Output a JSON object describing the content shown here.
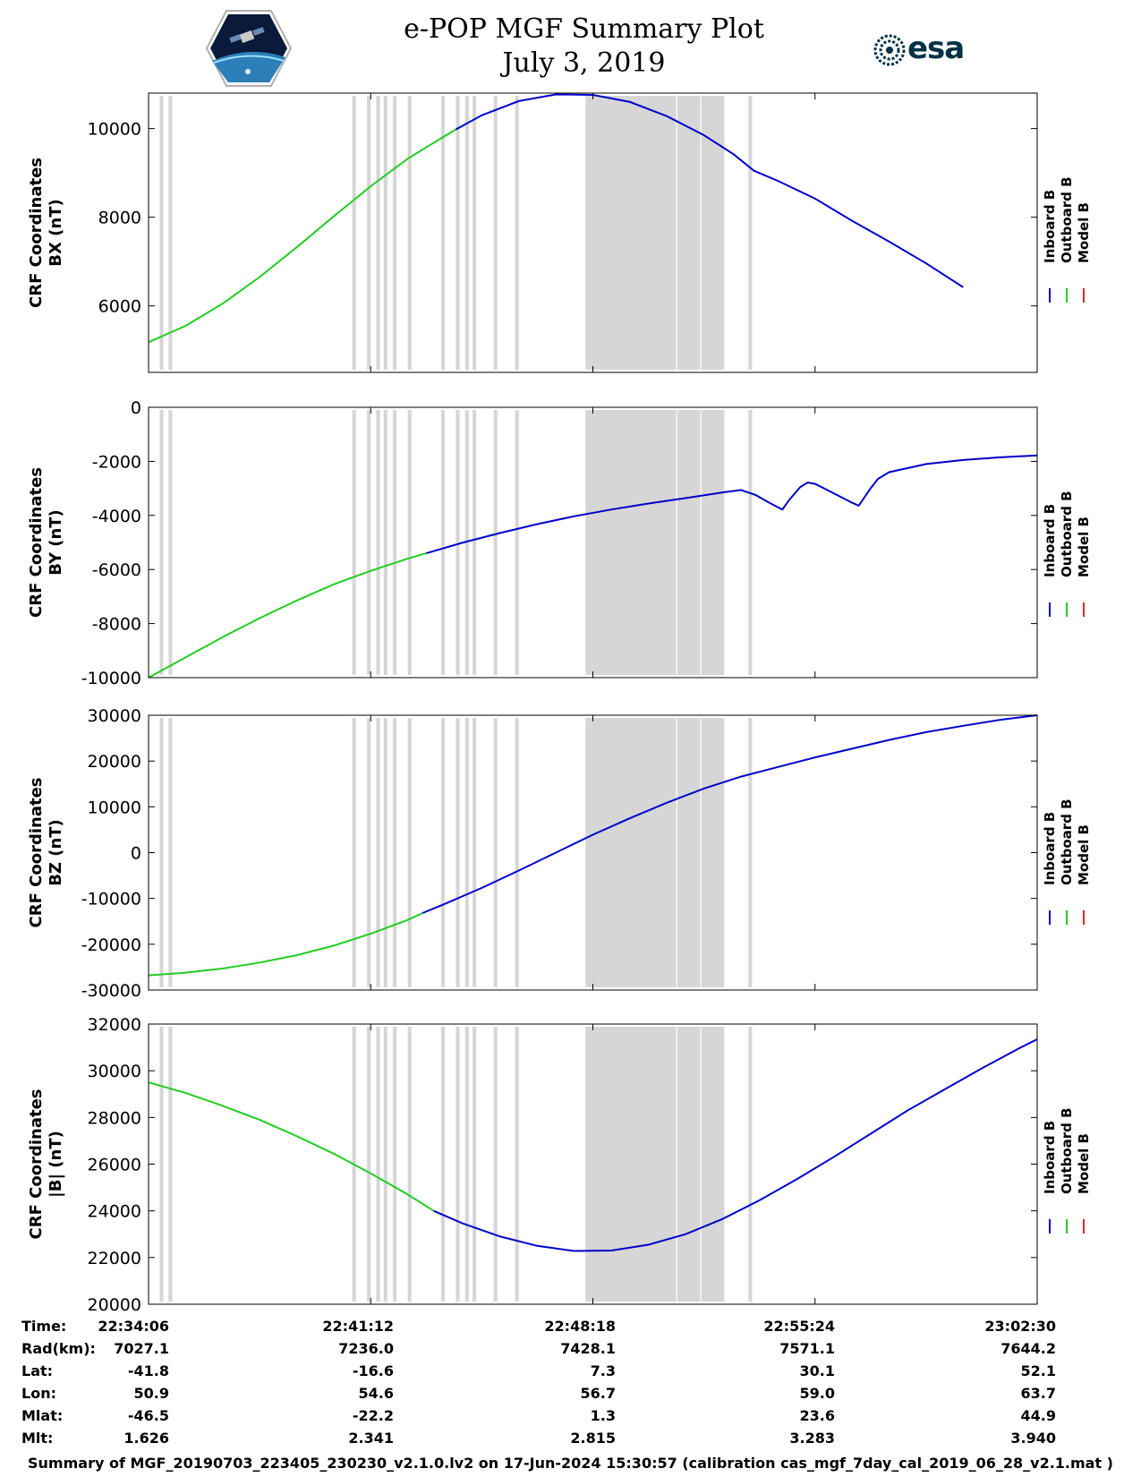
{
  "title": "e-POP MGF Summary Plot",
  "date": "July 3, 2019",
  "logo_right_text": "esa",
  "footer": "Summary of MGF_20190703_223405_230230_v2.1.0.lv2 on 17-Jun-2024 15:30:57 (calibration cas_mgf_7day_cal_2019_06_28_v2.1.mat )",
  "colors": {
    "inboard": "#0000cc",
    "outboard": "#22cc22",
    "model": "#ee2222",
    "gap": "#d6d6d6"
  },
  "legend": [
    "Inboard B",
    "Outboard B",
    "Model B"
  ],
  "time_axis": {
    "tick_labels": [
      "22:34:06",
      "22:41:12",
      "22:48:18",
      "22:55:24",
      "23:02:30"
    ],
    "start_sec": 0,
    "end_sec": 1704
  },
  "orbit_table": {
    "rows": [
      {
        "label": "Time:",
        "values": [
          "22:34:06",
          "22:41:12",
          "22:48:18",
          "22:55:24",
          "23:02:30"
        ]
      },
      {
        "label": "Rad(km):",
        "values": [
          "7027.1",
          "7236.0",
          "7428.1",
          "7571.1",
          "7644.2"
        ]
      },
      {
        "label": "Lat:",
        "values": [
          "-41.8",
          "-16.6",
          "7.3",
          "30.1",
          "52.1"
        ]
      },
      {
        "label": "Lon:",
        "values": [
          "50.9",
          "54.6",
          "56.7",
          "59.0",
          "63.7"
        ]
      },
      {
        "label": "Mlat:",
        "values": [
          "-46.5",
          "-22.2",
          "1.3",
          "23.6",
          "44.9"
        ]
      },
      {
        "label": "Mlt:",
        "values": [
          "1.626",
          "2.341",
          "2.815",
          "3.283",
          "3.940"
        ]
      }
    ]
  },
  "chart_data": [
    {
      "type": "line",
      "ylabel": [
        "CRF Coordinates",
        "BX (nT)"
      ],
      "ylim": [
        4500,
        10800
      ],
      "yticks": [
        6000,
        8000,
        10000
      ],
      "gaps": [
        [
          30,
          40
        ],
        [
          54,
          64
        ],
        [
          550,
          560
        ],
        [
          590,
          600
        ],
        [
          615,
          625
        ],
        [
          635,
          645
        ],
        [
          660,
          670
        ],
        [
          700,
          710
        ],
        [
          790,
          800
        ],
        [
          830,
          840
        ],
        [
          855,
          865
        ],
        [
          875,
          885
        ],
        [
          932,
          942
        ],
        [
          990,
          1000
        ],
        [
          1180,
          1425
        ],
        [
          1428,
          1490
        ],
        [
          1493,
          1555
        ],
        [
          1620,
          1630
        ]
      ],
      "series": [
        {
          "name": "Outboard B",
          "color_key": "outboard",
          "points": [
            [
              0,
              5180
            ],
            [
              100,
              5550
            ],
            [
              200,
              6050
            ],
            [
              300,
              6650
            ],
            [
              400,
              7320
            ],
            [
              500,
              8020
            ],
            [
              600,
              8700
            ],
            [
              700,
              9320
            ],
            [
              800,
              9830
            ],
            [
              830,
              9980
            ]
          ]
        },
        {
          "name": "Inboard B",
          "color_key": "inboard",
          "points": [
            [
              830,
              9980
            ],
            [
              900,
              10300
            ],
            [
              1000,
              10620
            ],
            [
              1100,
              10770
            ],
            [
              1200,
              10760
            ],
            [
              1300,
              10600
            ],
            [
              1400,
              10280
            ],
            [
              1500,
              9850
            ],
            [
              1580,
              9420
            ],
            [
              1635,
              9050
            ],
            [
              1700,
              8820
            ],
            [
              1800,
              8420
            ],
            [
              1900,
              7920
            ],
            [
              2000,
              7450
            ],
            [
              2100,
              6960
            ],
            [
              2200,
              6420
            ]
          ]
        }
      ]
    },
    {
      "type": "line",
      "ylabel": [
        "CRF Coordinates",
        "BY (nT)"
      ],
      "ylim": [
        -10000,
        0
      ],
      "yticks": [
        -10000,
        -8000,
        -6000,
        -4000,
        -2000,
        0
      ],
      "gaps": [
        [
          30,
          40
        ],
        [
          54,
          64
        ],
        [
          550,
          560
        ],
        [
          590,
          600
        ],
        [
          615,
          625
        ],
        [
          635,
          645
        ],
        [
          660,
          670
        ],
        [
          700,
          710
        ],
        [
          790,
          800
        ],
        [
          830,
          840
        ],
        [
          855,
          865
        ],
        [
          875,
          885
        ],
        [
          932,
          942
        ],
        [
          990,
          1000
        ],
        [
          1180,
          1425
        ],
        [
          1428,
          1490
        ],
        [
          1493,
          1555
        ],
        [
          1620,
          1630
        ]
      ],
      "series": [
        {
          "name": "Outboard B",
          "color_key": "outboard",
          "points": [
            [
              0,
              -10000
            ],
            [
              100,
              -9250
            ],
            [
              200,
              -8500
            ],
            [
              300,
              -7800
            ],
            [
              400,
              -7150
            ],
            [
              500,
              -6550
            ],
            [
              600,
              -6050
            ],
            [
              700,
              -5600
            ],
            [
              750,
              -5400
            ]
          ]
        },
        {
          "name": "Inboard B",
          "color_key": "inboard",
          "points": [
            [
              750,
              -5400
            ],
            [
              850,
              -5000
            ],
            [
              950,
              -4650
            ],
            [
              1050,
              -4320
            ],
            [
              1150,
              -4030
            ],
            [
              1250,
              -3780
            ],
            [
              1350,
              -3560
            ],
            [
              1450,
              -3360
            ],
            [
              1550,
              -3150
            ],
            [
              1600,
              -3060
            ],
            [
              1640,
              -3250
            ],
            [
              1675,
              -3520
            ],
            [
              1700,
              -3700
            ],
            [
              1712,
              -3780
            ],
            [
              1730,
              -3430
            ],
            [
              1760,
              -2950
            ],
            [
              1780,
              -2780
            ],
            [
              1800,
              -2830
            ],
            [
              1860,
              -3250
            ],
            [
              1900,
              -3530
            ],
            [
              1918,
              -3640
            ],
            [
              1950,
              -3000
            ],
            [
              1970,
              -2650
            ],
            [
              2000,
              -2400
            ],
            [
              2100,
              -2100
            ],
            [
              2200,
              -1950
            ],
            [
              2300,
              -1850
            ],
            [
              2400,
              -1780
            ]
          ]
        }
      ]
    },
    {
      "type": "line",
      "ylabel": [
        "CRF Coordinates",
        "BZ (nT)"
      ],
      "ylim": [
        -30000,
        30000
      ],
      "yticks": [
        -30000,
        -20000,
        -10000,
        0,
        10000,
        20000,
        30000
      ],
      "gaps": [
        [
          30,
          40
        ],
        [
          54,
          64
        ],
        [
          550,
          560
        ],
        [
          590,
          600
        ],
        [
          615,
          625
        ],
        [
          635,
          645
        ],
        [
          660,
          670
        ],
        [
          700,
          710
        ],
        [
          790,
          800
        ],
        [
          830,
          840
        ],
        [
          855,
          865
        ],
        [
          875,
          885
        ],
        [
          932,
          942
        ],
        [
          990,
          1000
        ],
        [
          1180,
          1425
        ],
        [
          1428,
          1490
        ],
        [
          1493,
          1555
        ],
        [
          1620,
          1630
        ]
      ],
      "series": [
        {
          "name": "Outboard B",
          "color_key": "outboard",
          "points": [
            [
              0,
              -26800
            ],
            [
              100,
              -26200
            ],
            [
              200,
              -25300
            ],
            [
              300,
              -24000
            ],
            [
              400,
              -22400
            ],
            [
              500,
              -20300
            ],
            [
              600,
              -17700
            ],
            [
              700,
              -14700
            ],
            [
              740,
              -13200
            ]
          ]
        },
        {
          "name": "Inboard B",
          "color_key": "inboard",
          "points": [
            [
              740,
              -13200
            ],
            [
              800,
              -11200
            ],
            [
              900,
              -7700
            ],
            [
              1000,
              -3900
            ],
            [
              1100,
              0
            ],
            [
              1200,
              3900
            ],
            [
              1300,
              7500
            ],
            [
              1400,
              10900
            ],
            [
              1500,
              14000
            ],
            [
              1600,
              16600
            ],
            [
              1700,
              18700
            ],
            [
              1800,
              20800
            ],
            [
              1900,
              22700
            ],
            [
              2000,
              24600
            ],
            [
              2100,
              26300
            ],
            [
              2200,
              27700
            ],
            [
              2300,
              29000
            ],
            [
              2400,
              30000
            ]
          ]
        }
      ]
    },
    {
      "type": "line",
      "ylabel": [
        "CRF Coordinates",
        "|B| (nT)"
      ],
      "ylim": [
        20000,
        32000
      ],
      "yticks": [
        20000,
        22000,
        24000,
        26000,
        28000,
        30000,
        32000
      ],
      "gaps": [
        [
          30,
          40
        ],
        [
          54,
          64
        ],
        [
          550,
          560
        ],
        [
          590,
          600
        ],
        [
          615,
          625
        ],
        [
          635,
          645
        ],
        [
          660,
          670
        ],
        [
          700,
          710
        ],
        [
          790,
          800
        ],
        [
          830,
          840
        ],
        [
          855,
          865
        ],
        [
          875,
          885
        ],
        [
          932,
          942
        ],
        [
          990,
          1000
        ],
        [
          1180,
          1425
        ],
        [
          1428,
          1490
        ],
        [
          1493,
          1555
        ],
        [
          1620,
          1630
        ]
      ],
      "series": [
        {
          "name": "Outboard B",
          "color_key": "outboard",
          "points": [
            [
              0,
              29500
            ],
            [
              100,
              29050
            ],
            [
              200,
              28500
            ],
            [
              300,
              27900
            ],
            [
              400,
              27200
            ],
            [
              500,
              26450
            ],
            [
              600,
              25600
            ],
            [
              700,
              24700
            ],
            [
              770,
              24000
            ]
          ]
        },
        {
          "name": "Inboard B",
          "color_key": "inboard",
          "points": [
            [
              770,
              24000
            ],
            [
              850,
              23450
            ],
            [
              950,
              22900
            ],
            [
              1050,
              22500
            ],
            [
              1150,
              22280
            ],
            [
              1250,
              22300
            ],
            [
              1350,
              22550
            ],
            [
              1450,
              23000
            ],
            [
              1550,
              23650
            ],
            [
              1650,
              24450
            ],
            [
              1750,
              25350
            ],
            [
              1850,
              26300
            ],
            [
              1950,
              27300
            ],
            [
              2050,
              28300
            ],
            [
              2150,
              29200
            ],
            [
              2250,
              30100
            ],
            [
              2350,
              30950
            ],
            [
              2400,
              31350
            ]
          ]
        }
      ]
    }
  ]
}
